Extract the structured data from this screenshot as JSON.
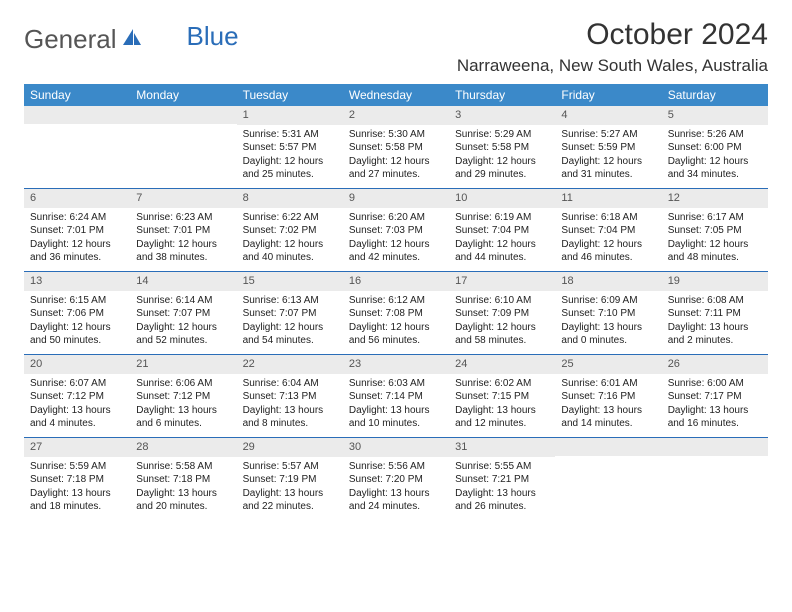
{
  "logo": {
    "word1": "General",
    "word2": "Blue"
  },
  "title": "October 2024",
  "location": "Narraweena, New South Wales, Australia",
  "colors": {
    "header_bg": "#3b89c9",
    "rule": "#2a6db8",
    "daynum_bg": "#ebebeb",
    "logo_blue": "#2a6db8"
  },
  "weekdays": [
    "Sunday",
    "Monday",
    "Tuesday",
    "Wednesday",
    "Thursday",
    "Friday",
    "Saturday"
  ],
  "weeks": [
    [
      null,
      null,
      {
        "n": "1",
        "sr": "5:31 AM",
        "ss": "5:57 PM",
        "dl": "12 hours and 25 minutes."
      },
      {
        "n": "2",
        "sr": "5:30 AM",
        "ss": "5:58 PM",
        "dl": "12 hours and 27 minutes."
      },
      {
        "n": "3",
        "sr": "5:29 AM",
        "ss": "5:58 PM",
        "dl": "12 hours and 29 minutes."
      },
      {
        "n": "4",
        "sr": "5:27 AM",
        "ss": "5:59 PM",
        "dl": "12 hours and 31 minutes."
      },
      {
        "n": "5",
        "sr": "5:26 AM",
        "ss": "6:00 PM",
        "dl": "12 hours and 34 minutes."
      }
    ],
    [
      {
        "n": "6",
        "sr": "6:24 AM",
        "ss": "7:01 PM",
        "dl": "12 hours and 36 minutes."
      },
      {
        "n": "7",
        "sr": "6:23 AM",
        "ss": "7:01 PM",
        "dl": "12 hours and 38 minutes."
      },
      {
        "n": "8",
        "sr": "6:22 AM",
        "ss": "7:02 PM",
        "dl": "12 hours and 40 minutes."
      },
      {
        "n": "9",
        "sr": "6:20 AM",
        "ss": "7:03 PM",
        "dl": "12 hours and 42 minutes."
      },
      {
        "n": "10",
        "sr": "6:19 AM",
        "ss": "7:04 PM",
        "dl": "12 hours and 44 minutes."
      },
      {
        "n": "11",
        "sr": "6:18 AM",
        "ss": "7:04 PM",
        "dl": "12 hours and 46 minutes."
      },
      {
        "n": "12",
        "sr": "6:17 AM",
        "ss": "7:05 PM",
        "dl": "12 hours and 48 minutes."
      }
    ],
    [
      {
        "n": "13",
        "sr": "6:15 AM",
        "ss": "7:06 PM",
        "dl": "12 hours and 50 minutes."
      },
      {
        "n": "14",
        "sr": "6:14 AM",
        "ss": "7:07 PM",
        "dl": "12 hours and 52 minutes."
      },
      {
        "n": "15",
        "sr": "6:13 AM",
        "ss": "7:07 PM",
        "dl": "12 hours and 54 minutes."
      },
      {
        "n": "16",
        "sr": "6:12 AM",
        "ss": "7:08 PM",
        "dl": "12 hours and 56 minutes."
      },
      {
        "n": "17",
        "sr": "6:10 AM",
        "ss": "7:09 PM",
        "dl": "12 hours and 58 minutes."
      },
      {
        "n": "18",
        "sr": "6:09 AM",
        "ss": "7:10 PM",
        "dl": "13 hours and 0 minutes."
      },
      {
        "n": "19",
        "sr": "6:08 AM",
        "ss": "7:11 PM",
        "dl": "13 hours and 2 minutes."
      }
    ],
    [
      {
        "n": "20",
        "sr": "6:07 AM",
        "ss": "7:12 PM",
        "dl": "13 hours and 4 minutes."
      },
      {
        "n": "21",
        "sr": "6:06 AM",
        "ss": "7:12 PM",
        "dl": "13 hours and 6 minutes."
      },
      {
        "n": "22",
        "sr": "6:04 AM",
        "ss": "7:13 PM",
        "dl": "13 hours and 8 minutes."
      },
      {
        "n": "23",
        "sr": "6:03 AM",
        "ss": "7:14 PM",
        "dl": "13 hours and 10 minutes."
      },
      {
        "n": "24",
        "sr": "6:02 AM",
        "ss": "7:15 PM",
        "dl": "13 hours and 12 minutes."
      },
      {
        "n": "25",
        "sr": "6:01 AM",
        "ss": "7:16 PM",
        "dl": "13 hours and 14 minutes."
      },
      {
        "n": "26",
        "sr": "6:00 AM",
        "ss": "7:17 PM",
        "dl": "13 hours and 16 minutes."
      }
    ],
    [
      {
        "n": "27",
        "sr": "5:59 AM",
        "ss": "7:18 PM",
        "dl": "13 hours and 18 minutes."
      },
      {
        "n": "28",
        "sr": "5:58 AM",
        "ss": "7:18 PM",
        "dl": "13 hours and 20 minutes."
      },
      {
        "n": "29",
        "sr": "5:57 AM",
        "ss": "7:19 PM",
        "dl": "13 hours and 22 minutes."
      },
      {
        "n": "30",
        "sr": "5:56 AM",
        "ss": "7:20 PM",
        "dl": "13 hours and 24 minutes."
      },
      {
        "n": "31",
        "sr": "5:55 AM",
        "ss": "7:21 PM",
        "dl": "13 hours and 26 minutes."
      },
      null,
      null
    ]
  ],
  "labels": {
    "sunrise": "Sunrise: ",
    "sunset": "Sunset: ",
    "daylight": "Daylight: "
  }
}
